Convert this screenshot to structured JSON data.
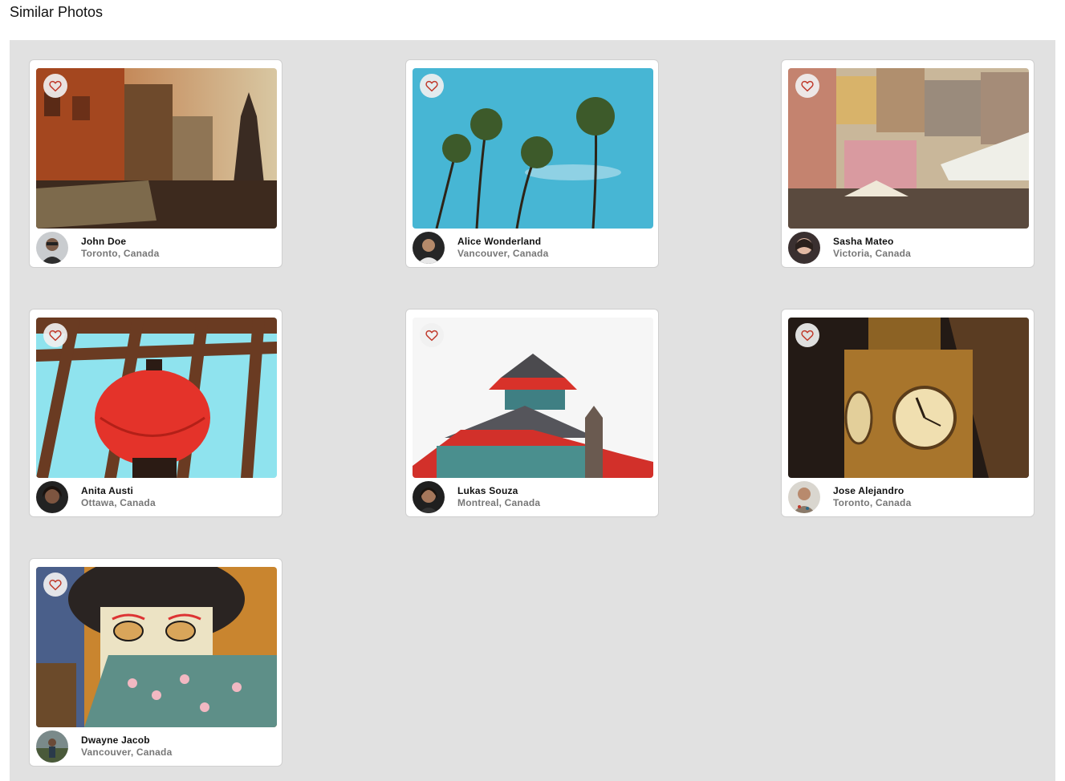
{
  "page": {
    "title": "Similar Photos"
  },
  "colors": {
    "like_heart": "#c0392b",
    "gallery_bg": "#e1e1e1"
  },
  "photos": [
    {
      "author": "John Doe",
      "location": "Toronto, Canada",
      "scene": "old-town-riverside-buildings",
      "liked": false
    },
    {
      "author": "Alice Wonderland",
      "location": "Vancouver, Canada",
      "scene": "palm-trees-blue-sky",
      "liked": false
    },
    {
      "author": "Sasha Mateo",
      "location": "Victoria, Canada",
      "scene": "colorful-hillside-village",
      "liked": false
    },
    {
      "author": "Anita Austi",
      "location": "Ottawa, Canada",
      "scene": "red-paper-lantern",
      "liked": false
    },
    {
      "author": "Lukas Souza",
      "location": "Montreal, Canada",
      "scene": "pagoda-rooftop",
      "liked": false
    },
    {
      "author": "Jose Alejandro",
      "location": "Toronto, Canada",
      "scene": "clock-tower-night",
      "liked": false
    },
    {
      "author": "Dwayne Jacob",
      "location": "Vancouver, Canada",
      "scene": "geisha-mural",
      "liked": false
    }
  ]
}
